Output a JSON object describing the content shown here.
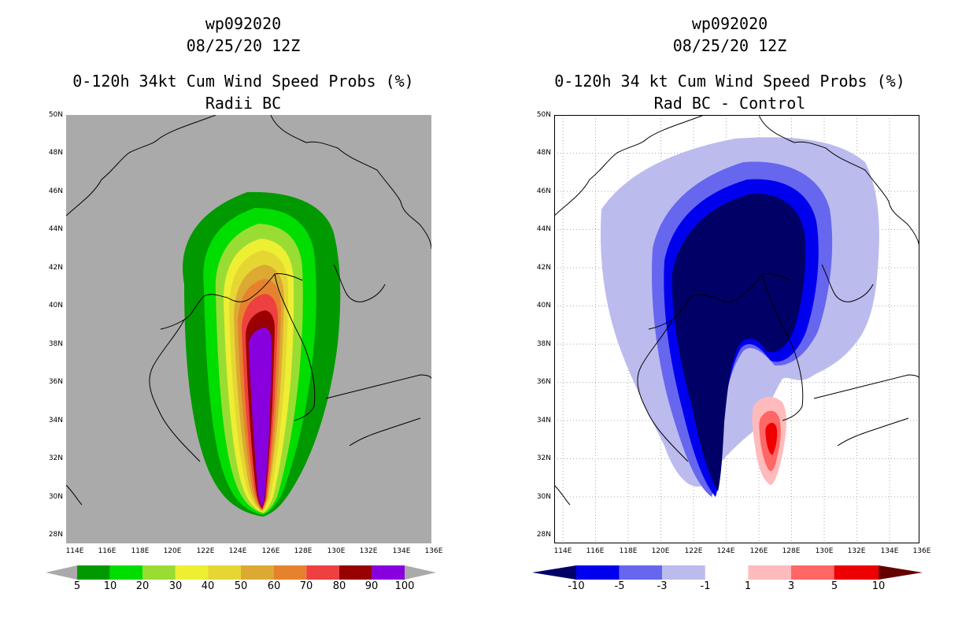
{
  "left_panel": {
    "storm_id": "wp092020",
    "datetime": "08/25/20 12Z",
    "title": "0-120h 34kt Cum Wind Speed Probs (%)",
    "subtitle": "Radii BC",
    "colorbar": {
      "labels": [
        "5",
        "10",
        "20",
        "30",
        "40",
        "50",
        "60",
        "70",
        "80",
        "90",
        "100"
      ],
      "colors": [
        "#009900",
        "#00dd00",
        "#99dd33",
        "#eeee33",
        "#e6d633",
        "#dcaa33",
        "#e6822d",
        "#ee4040",
        "#990000",
        "#8800dd"
      ],
      "under_color": "#aaaaaa",
      "over_color": "#aaaaaa"
    }
  },
  "right_panel": {
    "storm_id": "wp092020",
    "datetime": "08/25/20 12Z",
    "title": "0-120h 34 kt Cum Wind Speed Probs (%)",
    "subtitle": "Rad BC - Control",
    "colorbar": {
      "labels": [
        "-10",
        "-5",
        "-3",
        "-1",
        "1",
        "3",
        "5",
        "10"
      ],
      "colors": [
        "#0000ee",
        "#6666ee",
        "#bbbbee",
        "#ffffff",
        "#ffbbbb",
        "#ff6666",
        "#ee0000"
      ],
      "under_color": "#000066",
      "over_color": "#660000"
    }
  },
  "axes": {
    "lat_labels": [
      "50N",
      "48N",
      "46N",
      "44N",
      "42N",
      "40N",
      "38N",
      "36N",
      "34N",
      "32N",
      "30N",
      "28N"
    ],
    "lon_labels": [
      "114E",
      "116E",
      "118E",
      "120E",
      "122E",
      "124E",
      "126E",
      "128E",
      "130E",
      "132E",
      "134E",
      "136E"
    ]
  }
}
